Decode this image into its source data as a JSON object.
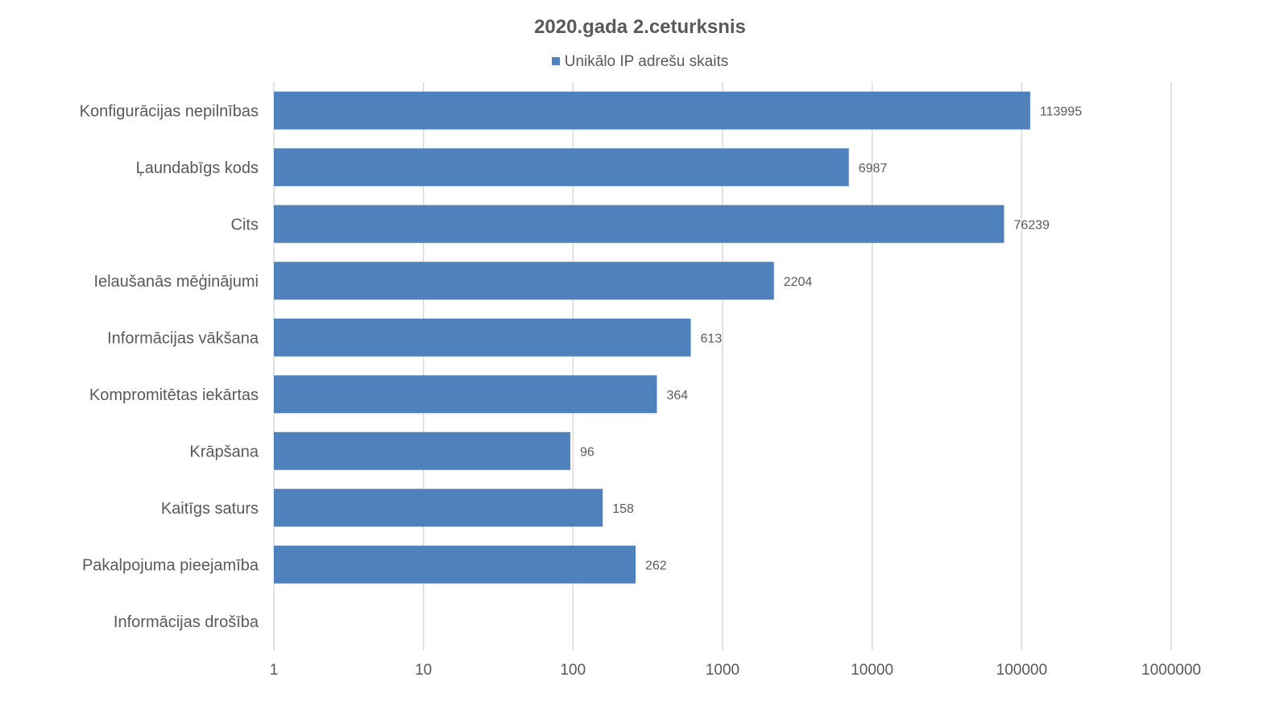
{
  "chart_data": {
    "type": "bar",
    "orientation": "horizontal",
    "title": "2020.gada 2.ceturksnis",
    "categories": [
      "Konfigurācijas nepilnības",
      "Ļaundabīgs kods",
      "Cits",
      "Ielaušanās mēģinājumi",
      "Informācijas vākšana",
      "Kompromitētas iekārtas",
      "Krāpšana",
      "Kaitīgs saturs",
      "Pakalpojuma pieejamība",
      "Informācijas drošība"
    ],
    "series": [
      {
        "name": "Unikālo IP adrešu skaits",
        "values": [
          113995,
          6987,
          76239,
          2204,
          613,
          364,
          96,
          158,
          262,
          null
        ],
        "data_labels": [
          "113995",
          "6987",
          "76239",
          "2204",
          "613",
          "364",
          "96",
          "158",
          "262",
          ""
        ]
      }
    ],
    "x_scale": "log",
    "xlim": [
      1,
      1000000
    ],
    "x_ticks": [
      "1",
      "10",
      "100",
      "1000",
      "10000",
      "100000",
      "1000000"
    ],
    "grid": true,
    "legend_position": "top",
    "colors": {
      "bar": "#4f81bd",
      "grid": "#d9d9d9",
      "text": "#595959"
    }
  }
}
